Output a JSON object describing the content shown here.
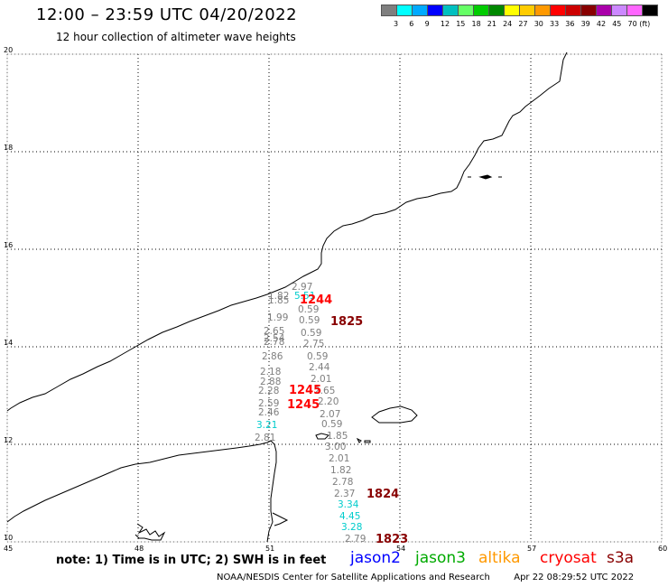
{
  "header": {
    "title": "12:00 – 23:59 UTC 04/20/2022",
    "subtitle": "12 hour collection of altimeter wave heights"
  },
  "legend": {
    "colors": [
      "#7f7f7f",
      "#00ffff",
      "#00aaff",
      "#0000ff",
      "#00c0c0",
      "#66ff66",
      "#00cc00",
      "#008800",
      "#ffff00",
      "#ffcc00",
      "#ff9900",
      "#ff0000",
      "#cc0000",
      "#880000",
      "#aa00aa",
      "#cc88ff",
      "#ff66ff",
      "#000000"
    ],
    "tick_labels": [
      "3",
      "6",
      "9",
      "12",
      "15",
      "18",
      "21",
      "24",
      "27",
      "30",
      "33",
      "36",
      "39",
      "42",
      "45",
      "70 (ft)"
    ]
  },
  "map": {
    "lat_labels": [
      "20",
      "18",
      "16",
      "14",
      "12",
      "10"
    ],
    "lon_labels": [
      "45",
      "48",
      "51",
      "54",
      "57",
      "60"
    ],
    "wave_heights": [
      {
        "t": "2.97",
        "c": "#7f7f7f"
      },
      {
        "t": "1.82",
        "c": "#7f7f7f"
      },
      {
        "t": "1.85",
        "c": "#7f7f7f"
      },
      {
        "t": "5.51",
        "c": "#00cccc"
      },
      {
        "t": "0.59",
        "c": "#7f7f7f"
      },
      {
        "t": "1.99",
        "c": "#7f7f7f"
      },
      {
        "t": "0.59",
        "c": "#7f7f7f"
      },
      {
        "t": "2.65",
        "c": "#7f7f7f"
      },
      {
        "t": "0.59",
        "c": "#7f7f7f"
      },
      {
        "t": "2.54",
        "c": "#7f7f7f"
      },
      {
        "t": "2.75",
        "c": "#7f7f7f"
      },
      {
        "t": "2.78",
        "c": "#7f7f7f"
      },
      {
        "t": "2.86",
        "c": "#7f7f7f"
      },
      {
        "t": "0.59",
        "c": "#7f7f7f"
      },
      {
        "t": "2.44",
        "c": "#7f7f7f"
      },
      {
        "t": "2.18",
        "c": "#7f7f7f"
      },
      {
        "t": "2.01",
        "c": "#7f7f7f"
      },
      {
        "t": "2.88",
        "c": "#7f7f7f"
      },
      {
        "t": "2.28",
        "c": "#7f7f7f"
      },
      {
        "t": "2.65",
        "c": "#7f7f7f"
      },
      {
        "t": "2.59",
        "c": "#7f7f7f"
      },
      {
        "t": "2.20",
        "c": "#7f7f7f"
      },
      {
        "t": "2.46",
        "c": "#7f7f7f"
      },
      {
        "t": "2.07",
        "c": "#7f7f7f"
      },
      {
        "t": "0.59",
        "c": "#7f7f7f"
      },
      {
        "t": "3.21",
        "c": "#00cccc"
      },
      {
        "t": "2.81",
        "c": "#7f7f7f"
      },
      {
        "t": "1.85",
        "c": "#7f7f7f"
      },
      {
        "t": "3.00",
        "c": "#7f7f7f"
      },
      {
        "t": "2.01",
        "c": "#7f7f7f"
      },
      {
        "t": "1.82",
        "c": "#7f7f7f"
      },
      {
        "t": "2.78",
        "c": "#7f7f7f"
      },
      {
        "t": "2.37",
        "c": "#7f7f7f"
      },
      {
        "t": "3.34",
        "c": "#00cccc"
      },
      {
        "t": "4.45",
        "c": "#00cccc"
      },
      {
        "t": "3.28",
        "c": "#00cccc"
      },
      {
        "t": "2.79",
        "c": "#7f7f7f"
      }
    ],
    "pass_times": [
      {
        "t": "1244",
        "c": "#ff0000"
      },
      {
        "t": "1825",
        "c": "#880000"
      },
      {
        "t": "1245",
        "c": "#ff0000"
      },
      {
        "t": "1245",
        "c": "#ff0000"
      },
      {
        "t": "1824",
        "c": "#880000"
      },
      {
        "t": "1823",
        "c": "#880000"
      }
    ]
  },
  "footer": {
    "note": "note: 1) Time is in UTC; 2) SWH is in feet",
    "satellites": [
      {
        "name": "jason2",
        "color": "#0000ff"
      },
      {
        "name": "jason3",
        "color": "#00aa00"
      },
      {
        "name": "altika",
        "color": "#ff9900"
      },
      {
        "name": "cryosat",
        "color": "#ff0000"
      },
      {
        "name": "s3a",
        "color": "#880000"
      }
    ],
    "credit": "NOAA/NESDIS Center for Satellite Applications and Research",
    "timestamp": "Apr 22 08:29:52 UTC 2022"
  }
}
